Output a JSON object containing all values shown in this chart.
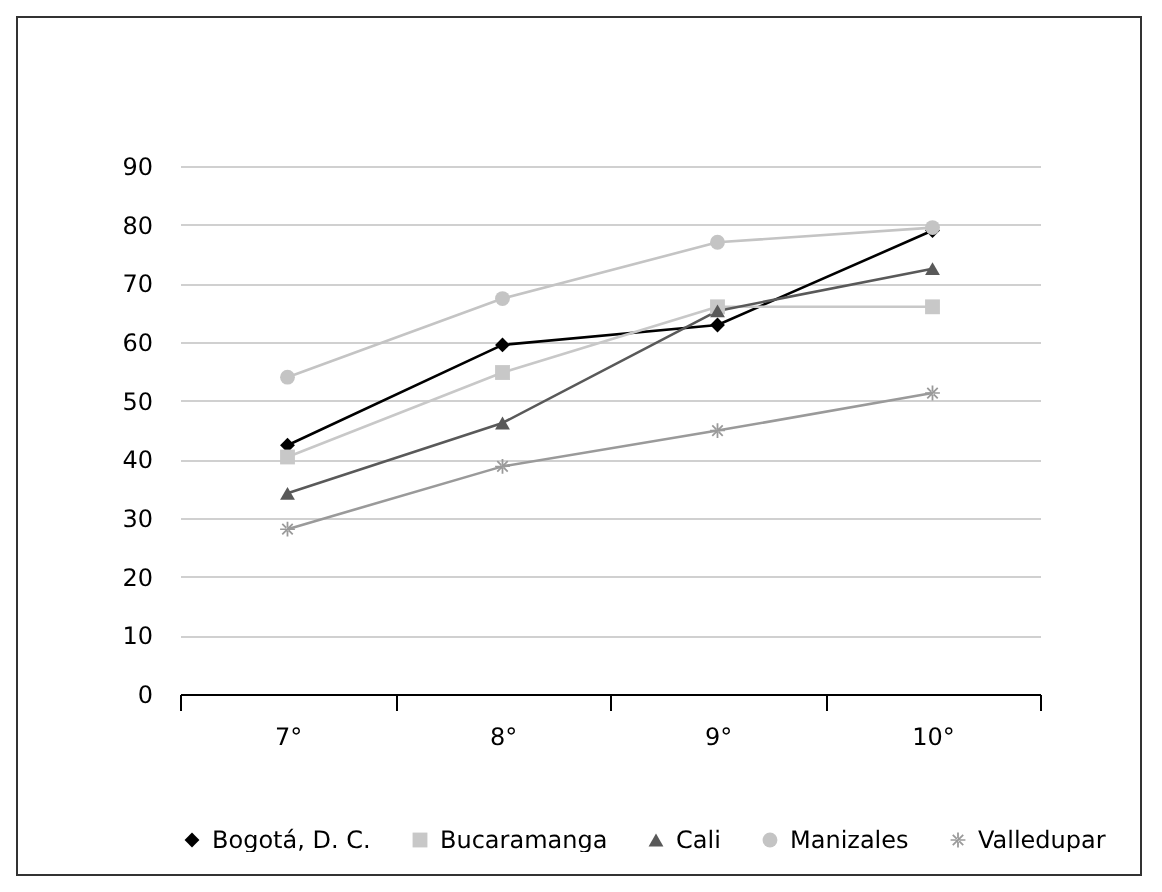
{
  "chart_data": {
    "type": "line",
    "categories": [
      "7°",
      "8°",
      "9°",
      "10°"
    ],
    "ylim": [
      0,
      90
    ],
    "yticks": [
      0,
      10,
      20,
      30,
      40,
      50,
      60,
      70,
      80,
      90
    ],
    "grid": "y",
    "legend": "bottom",
    "series": [
      {
        "name": "Bogotá, D. C.",
        "color": "#000000",
        "marker": "diamond",
        "values": [
          42.4,
          59.5,
          62.9,
          79
        ]
      },
      {
        "name": "Bucaramanga",
        "color": "#c8c8c8",
        "marker": "square",
        "values": [
          40.4,
          54.8,
          66,
          66
        ]
      },
      {
        "name": "Cali",
        "color": "#595959",
        "marker": "triangle",
        "values": [
          34.2,
          46.2,
          65.3,
          72.5
        ]
      },
      {
        "name": "Manizales",
        "color": "#c4c4c4",
        "marker": "circle",
        "values": [
          54,
          67.4,
          77,
          79.5
        ]
      },
      {
        "name": "Valledupar",
        "color": "#9a9a9a",
        "marker": "star",
        "values": [
          28.1,
          38.8,
          44.9,
          51.3
        ]
      }
    ]
  }
}
